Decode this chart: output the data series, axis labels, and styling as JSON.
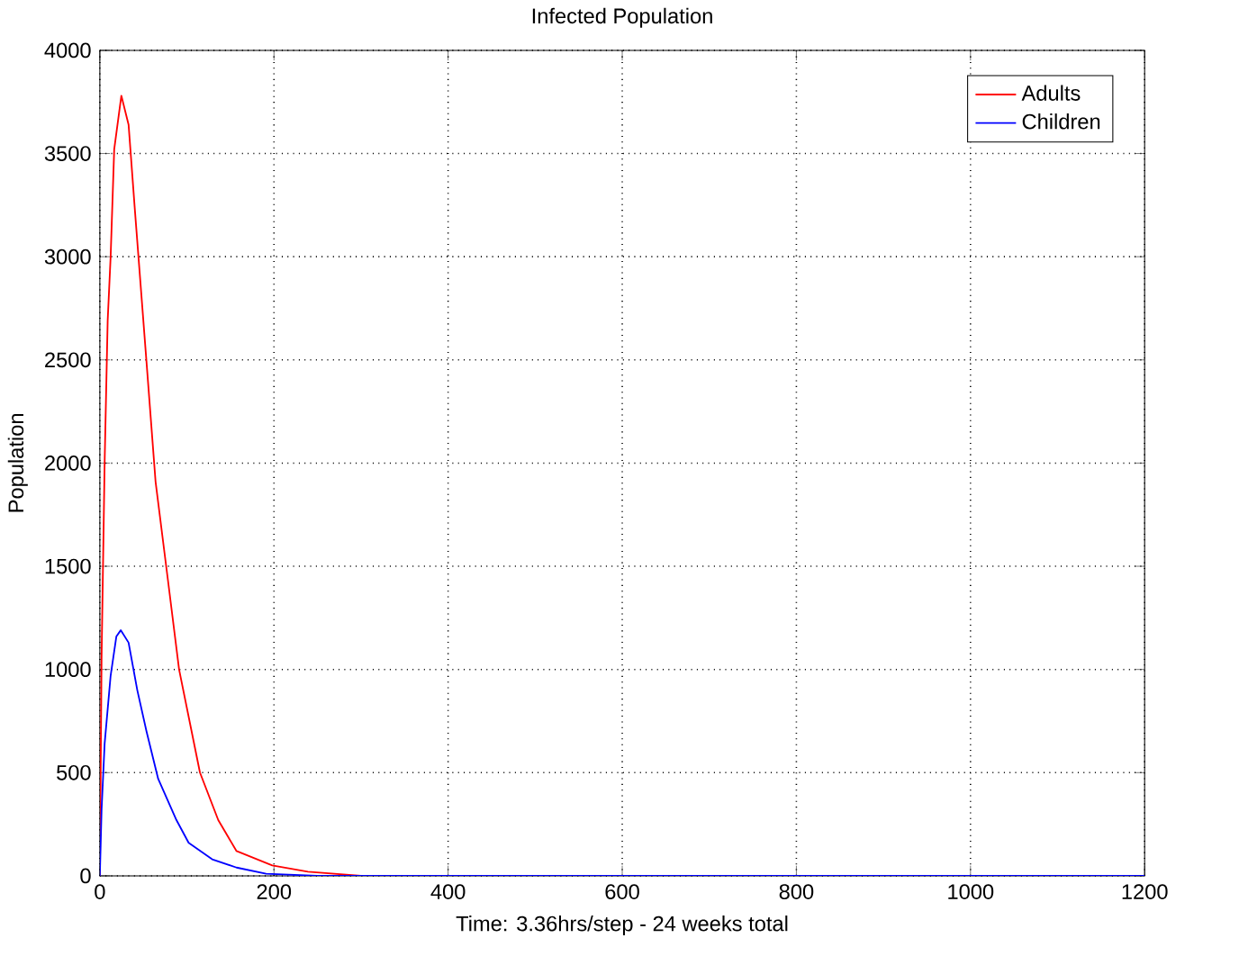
{
  "chart_data": {
    "type": "line",
    "title": "Infected Population",
    "xlabel": "Time: 3.36hrs/step - 24 weeks total",
    "ylabel": "Population",
    "xlim": [
      0,
      1200
    ],
    "ylim": [
      0,
      4000
    ],
    "xticks": [
      0,
      200,
      400,
      600,
      800,
      1000,
      1200
    ],
    "yticks": [
      0,
      500,
      1000,
      1500,
      2000,
      2500,
      3000,
      3500,
      4000
    ],
    "grid": true,
    "legend": "top right",
    "line_style": "solid",
    "marker": "none",
    "series": [
      {
        "name": "Adults",
        "color": "#ff0000",
        "x": [
          0,
          2,
          5.5,
          9,
          12.4,
          16.5,
          24.7,
          33,
          40,
          53.6,
          64,
          77.7,
          91,
          115,
          136,
          157,
          198,
          239,
          300
        ],
        "values": [
          0,
          1060,
          2000,
          2690,
          3000,
          3520,
          3780,
          3640,
          3240,
          2490,
          1910,
          1450,
          1000,
          500,
          270,
          120,
          50,
          20,
          0
        ]
      },
      {
        "name": "Children",
        "color": "#0000ff",
        "x": [
          0,
          2,
          5.5,
          12.4,
          19,
          24,
          33,
          43,
          53.6,
          67,
          88,
          102,
          129,
          157,
          191,
          250,
          600,
          900,
          1200
        ],
        "values": [
          0,
          320,
          640,
          970,
          1160,
          1190,
          1130,
          900,
          700,
          470,
          270,
          160,
          80,
          40,
          10,
          0,
          0,
          0,
          0
        ]
      }
    ]
  }
}
